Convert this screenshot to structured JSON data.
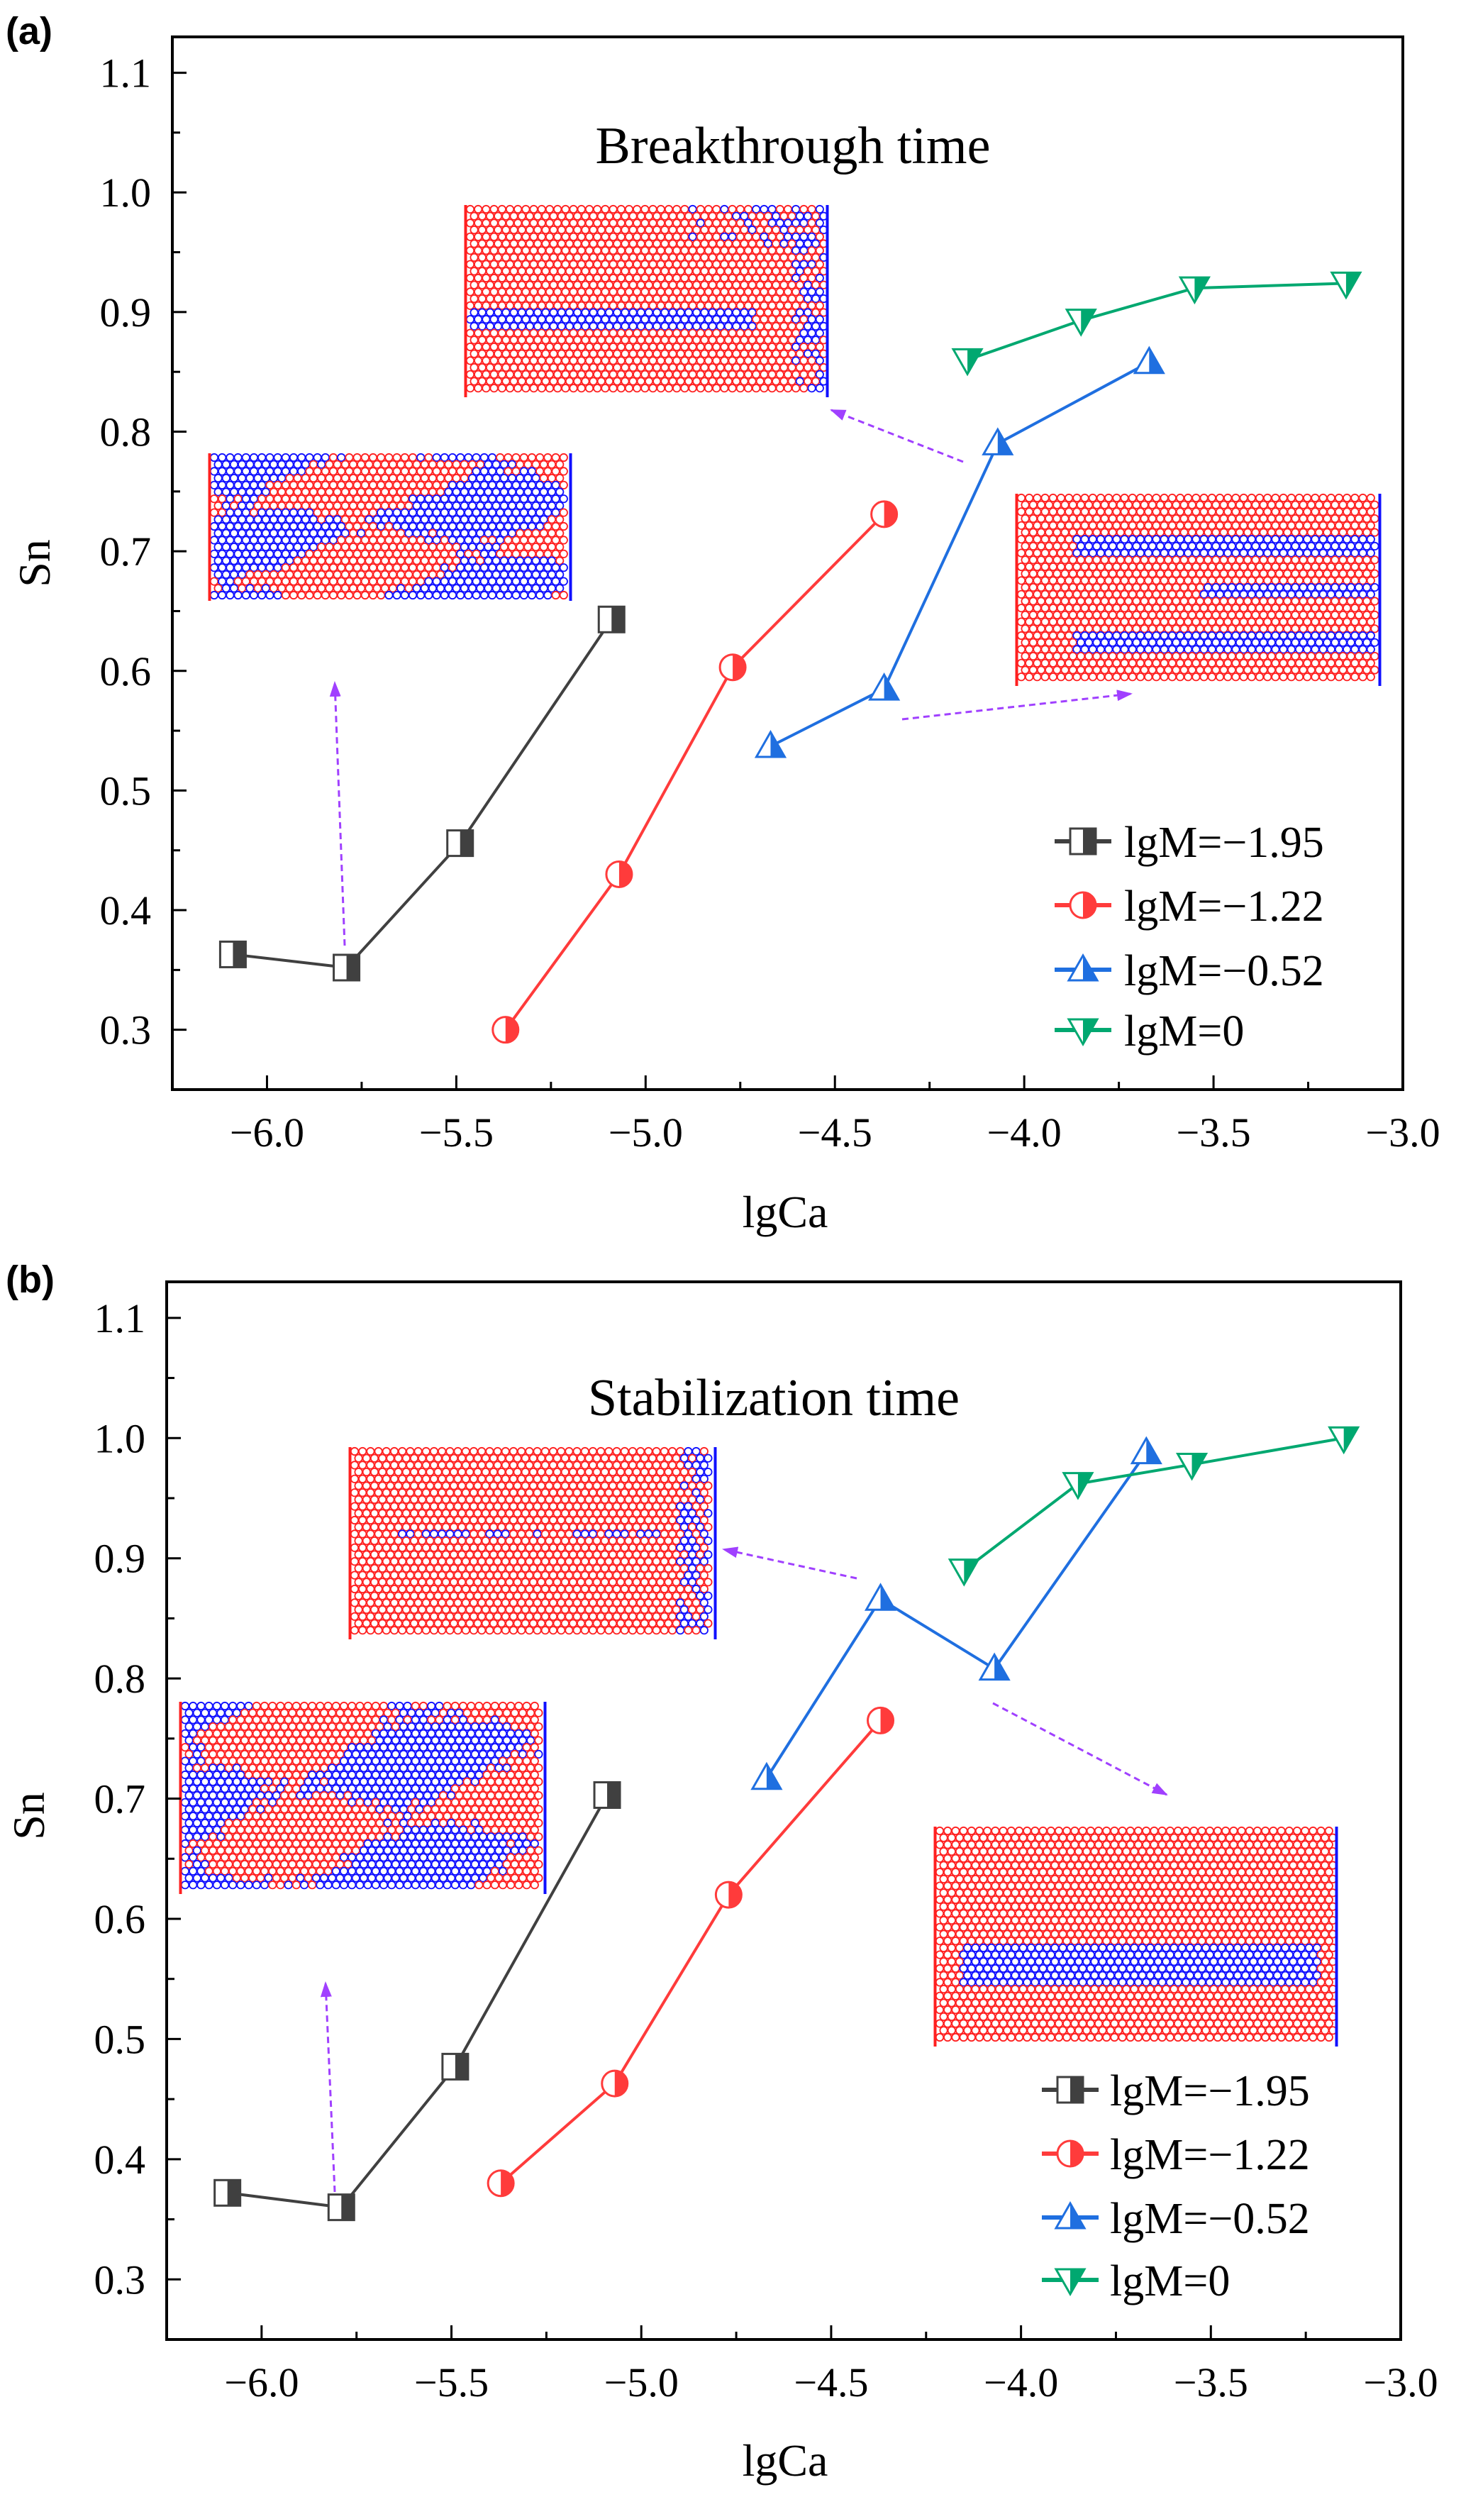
{
  "colors": {
    "s1": "#404040",
    "s2": "#ff3b3b",
    "s3": "#1f6fe0",
    "s4": "#00a870",
    "arrow": "#a040ff",
    "wet": "#ff2020",
    "nonwet": "#1010ff"
  },
  "chart_data": [
    {
      "type": "line",
      "panel_label": "(a)",
      "title": "Breakthrough time",
      "xlabel": "lgCa",
      "ylabel": "Sn",
      "xlim": [
        -6.25,
        -3.0
      ],
      "ylim": [
        0.25,
        1.13
      ],
      "xticks": [
        "−6.0",
        "−5.5",
        "−5.0",
        "−4.5",
        "−4.0",
        "−3.5",
        "−3.0"
      ],
      "yticks": [
        "0.3",
        "0.4",
        "0.5",
        "0.6",
        "0.7",
        "0.8",
        "0.9",
        "1.0",
        "1.1"
      ],
      "legend_position": "bottom-right",
      "series": [
        {
          "name": "lgM=−1.95",
          "marker": "square",
          "x": [
            -6.09,
            -5.79,
            -5.49,
            -5.09
          ],
          "y": [
            0.363,
            0.352,
            0.456,
            0.643
          ]
        },
        {
          "name": "lgM=−1.22",
          "marker": "circle",
          "x": [
            -5.37,
            -5.07,
            -4.77,
            -4.37
          ],
          "y": [
            0.3,
            0.43,
            0.603,
            0.731
          ]
        },
        {
          "name": "lgM=−0.52",
          "marker": "triangle-up",
          "x": [
            -4.67,
            -4.37,
            -4.07,
            -3.67
          ],
          "y": [
            0.537,
            0.585,
            0.79,
            0.858
          ]
        },
        {
          "name": "lgM=0",
          "marker": "triangle-down",
          "x": [
            -4.15,
            -3.85,
            -3.55,
            -3.15
          ],
          "y": [
            0.86,
            0.893,
            0.92,
            0.924
          ]
        }
      ]
    },
    {
      "type": "line",
      "panel_label": "(b)",
      "title": "Stabilization time",
      "xlabel": "lgCa",
      "ylabel": "Sn",
      "xlim": [
        -6.25,
        -3.0
      ],
      "ylim": [
        0.25,
        1.13
      ],
      "xticks": [
        "−6.0",
        "−5.5",
        "−5.0",
        "−4.5",
        "−4.0",
        "−3.5",
        "−3.0"
      ],
      "yticks": [
        "0.3",
        "0.4",
        "0.5",
        "0.6",
        "0.7",
        "0.8",
        "0.9",
        "1.0",
        "1.1"
      ],
      "legend_position": "bottom-right",
      "series": [
        {
          "name": "lgM=−1.95",
          "marker": "square",
          "x": [
            -6.09,
            -5.79,
            -5.49,
            -5.09
          ],
          "y": [
            0.372,
            0.36,
            0.477,
            0.703
          ]
        },
        {
          "name": "lgM=−1.22",
          "marker": "circle",
          "x": [
            -5.37,
            -5.07,
            -4.77,
            -4.37
          ],
          "y": [
            0.38,
            0.463,
            0.62,
            0.765
          ]
        },
        {
          "name": "lgM=−0.52",
          "marker": "triangle-up",
          "x": [
            -4.67,
            -4.37,
            -4.07,
            -3.67
          ],
          "y": [
            0.717,
            0.866,
            0.808,
            0.988
          ]
        },
        {
          "name": "lgM=0",
          "marker": "triangle-down",
          "x": [
            -4.15,
            -3.85,
            -3.55,
            -3.15
          ],
          "y": [
            0.89,
            0.962,
            0.978,
            1.0
          ]
        }
      ]
    }
  ]
}
